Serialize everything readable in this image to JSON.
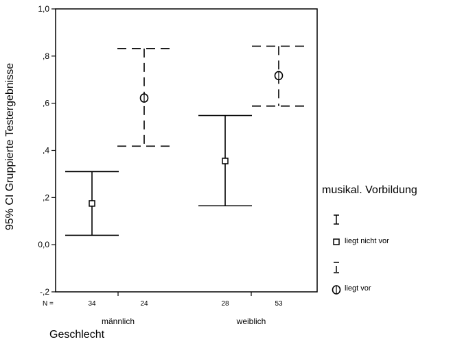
{
  "chart_data": {
    "type": "errorbar",
    "title": "",
    "ylabel": "95% CI Gruppierte Testergebnisse",
    "xlabel": "Geschlecht",
    "ylim": [
      -0.2,
      1.0
    ],
    "yticks": [
      {
        "value": 1.0,
        "label": "1,0"
      },
      {
        "value": 0.8,
        "label": ",8"
      },
      {
        "value": 0.6,
        "label": ",6"
      },
      {
        "value": 0.4,
        "label": ",4"
      },
      {
        "value": 0.2,
        "label": ",2"
      },
      {
        "value": 0.0,
        "label": "0,0"
      },
      {
        "value": -0.2,
        "label": "-,2"
      }
    ],
    "categories": [
      "männlich",
      "weiblich"
    ],
    "n_label": "N =",
    "legend": {
      "title": "musikal. Vorbildung",
      "position": "right"
    },
    "series": [
      {
        "name": "liegt nicht vor",
        "style": "solid",
        "marker": "square",
        "points": [
          {
            "category": "männlich",
            "n": "34",
            "mean": 0.175,
            "lower": 0.04,
            "upper": 0.31
          },
          {
            "category": "weiblich",
            "n": "28",
            "mean": 0.355,
            "lower": 0.165,
            "upper": 0.548
          }
        ]
      },
      {
        "name": "liegt vor",
        "style": "dashed",
        "marker": "circle",
        "points": [
          {
            "category": "männlich",
            "n": "24",
            "mean": 0.622,
            "lower": 0.418,
            "upper": 0.832
          },
          {
            "category": "weiblich",
            "n": "53",
            "mean": 0.717,
            "lower": 0.588,
            "upper": 0.842
          }
        ]
      }
    ]
  }
}
